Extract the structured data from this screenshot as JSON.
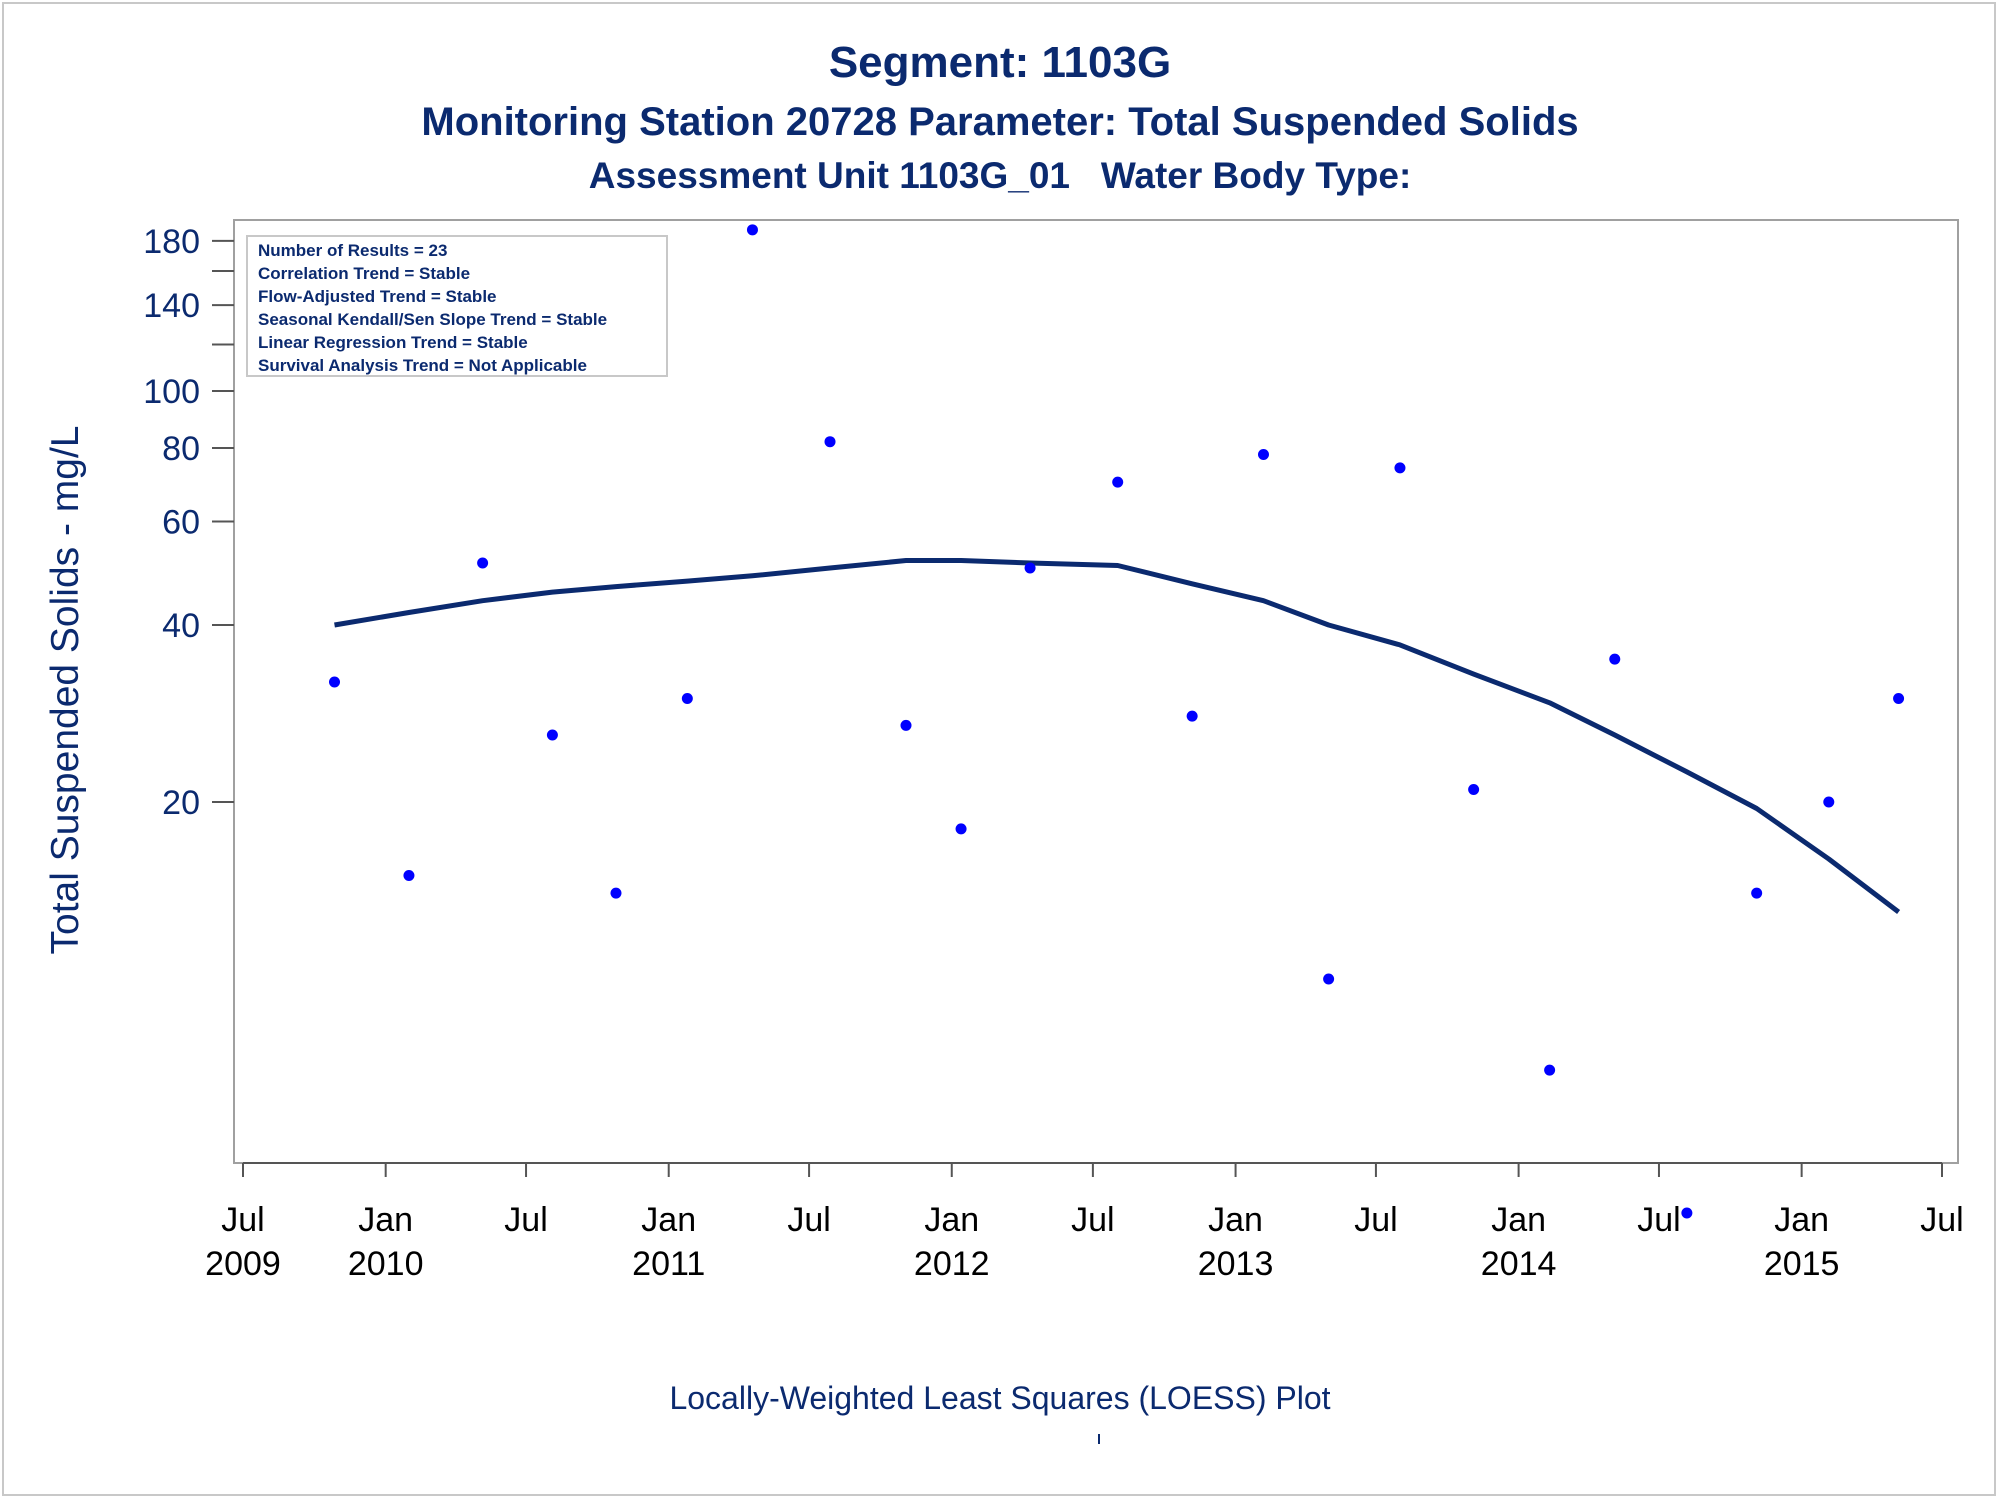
{
  "titles": {
    "title": "Segment: 1103G",
    "subtitle": "Monitoring Station 20728 Parameter: Total Suspended Solids",
    "subtitle2": "Assessment Unit 1103G_01   Water Body Type:"
  },
  "footnote": "Locally-Weighted Least Squares (LOESS) Plot",
  "colors": {
    "text": "#0b2a6f",
    "points": "#0000ff",
    "loess": "#0b2a6f",
    "frame": "#a0a0a0"
  },
  "chart_data": {
    "type": "scatter",
    "ylabel": "Total Suspended Solids - mg/L",
    "y_scale": "log",
    "y_ticks": [
      20,
      40,
      60,
      80,
      100,
      140,
      180
    ],
    "y_minor_ticks": [
      120,
      160
    ],
    "x_ticks": [
      {
        "date": "2009-07-01",
        "line1": "Jul",
        "line2": "2009"
      },
      {
        "date": "2010-01-01",
        "line1": "Jan",
        "line2": "2010"
      },
      {
        "date": "2010-07-01",
        "line1": "Jul",
        "line2": ""
      },
      {
        "date": "2011-01-01",
        "line1": "Jan",
        "line2": "2011"
      },
      {
        "date": "2011-07-01",
        "line1": "Jul",
        "line2": ""
      },
      {
        "date": "2012-01-01",
        "line1": "Jan",
        "line2": "2012"
      },
      {
        "date": "2012-07-01",
        "line1": "Jul",
        "line2": ""
      },
      {
        "date": "2013-01-01",
        "line1": "Jan",
        "line2": "2013"
      },
      {
        "date": "2013-07-01",
        "line1": "Jul",
        "line2": ""
      },
      {
        "date": "2014-01-01",
        "line1": "Jan",
        "line2": "2014"
      },
      {
        "date": "2014-07-01",
        "line1": "Jul",
        "line2": ""
      },
      {
        "date": "2015-01-01",
        "line1": "Jan",
        "line2": "2015"
      },
      {
        "date": "2015-07-01",
        "line1": "Jul",
        "line2": ""
      }
    ],
    "legend": {
      "position": "top-left",
      "lines": [
        "Number of Results = 23",
        "Correlation Trend = Stable",
        "Flow-Adjusted Trend = Stable",
        "Seasonal Kendall/Sen Slope Trend = Stable",
        "Linear Regression Trend = Stable",
        "Survival Analysis Trend = Not Applicable"
      ]
    },
    "points": [
      {
        "x": "2009-10-27",
        "y": 32
      },
      {
        "x": "2010-01-31",
        "y": 15
      },
      {
        "x": "2010-05-06",
        "y": 51
      },
      {
        "x": "2010-08-04",
        "y": 26
      },
      {
        "x": "2010-10-25",
        "y": 14
      },
      {
        "x": "2011-01-25",
        "y": 30
      },
      {
        "x": "2011-04-19",
        "y": 188
      },
      {
        "x": "2011-07-28",
        "y": 82
      },
      {
        "x": "2011-11-03",
        "y": 27
      },
      {
        "x": "2012-01-13",
        "y": 18
      },
      {
        "x": "2012-04-11",
        "y": 50
      },
      {
        "x": "2012-08-02",
        "y": 70
      },
      {
        "x": "2012-11-06",
        "y": 28
      },
      {
        "x": "2013-02-06",
        "y": 78
      },
      {
        "x": "2013-05-01",
        "y": 10
      },
      {
        "x": "2013-08-01",
        "y": 74
      },
      {
        "x": "2013-11-04",
        "y": 21
      },
      {
        "x": "2014-02-10",
        "y": 7
      },
      {
        "x": "2014-05-05",
        "y": 35
      },
      {
        "x": "2014-08-06",
        "y": 4
      },
      {
        "x": "2014-11-04",
        "y": 14
      },
      {
        "x": "2015-02-05",
        "y": 20
      },
      {
        "x": "2015-05-06",
        "y": 30
      }
    ],
    "loess": [
      {
        "x": "2009-10-27",
        "y": 40
      },
      {
        "x": "2010-01-31",
        "y": 42
      },
      {
        "x": "2010-05-06",
        "y": 44
      },
      {
        "x": "2010-08-04",
        "y": 45.5
      },
      {
        "x": "2010-10-25",
        "y": 46.5
      },
      {
        "x": "2011-01-25",
        "y": 47.5
      },
      {
        "x": "2011-04-19",
        "y": 48.5
      },
      {
        "x": "2011-07-28",
        "y": 50
      },
      {
        "x": "2011-11-03",
        "y": 51.5
      },
      {
        "x": "2012-01-13",
        "y": 51.5
      },
      {
        "x": "2012-04-11",
        "y": 51
      },
      {
        "x": "2012-08-02",
        "y": 50.5
      },
      {
        "x": "2012-11-06",
        "y": 47
      },
      {
        "x": "2013-02-06",
        "y": 44
      },
      {
        "x": "2013-05-01",
        "y": 40
      },
      {
        "x": "2013-08-01",
        "y": 37
      },
      {
        "x": "2013-11-04",
        "y": 33
      },
      {
        "x": "2014-02-10",
        "y": 29.5
      },
      {
        "x": "2014-05-05",
        "y": 26
      },
      {
        "x": "2014-08-06",
        "y": 22.5
      },
      {
        "x": "2014-11-04",
        "y": 19.5
      },
      {
        "x": "2015-02-05",
        "y": 16
      },
      {
        "x": "2015-05-06",
        "y": 13
      }
    ]
  }
}
